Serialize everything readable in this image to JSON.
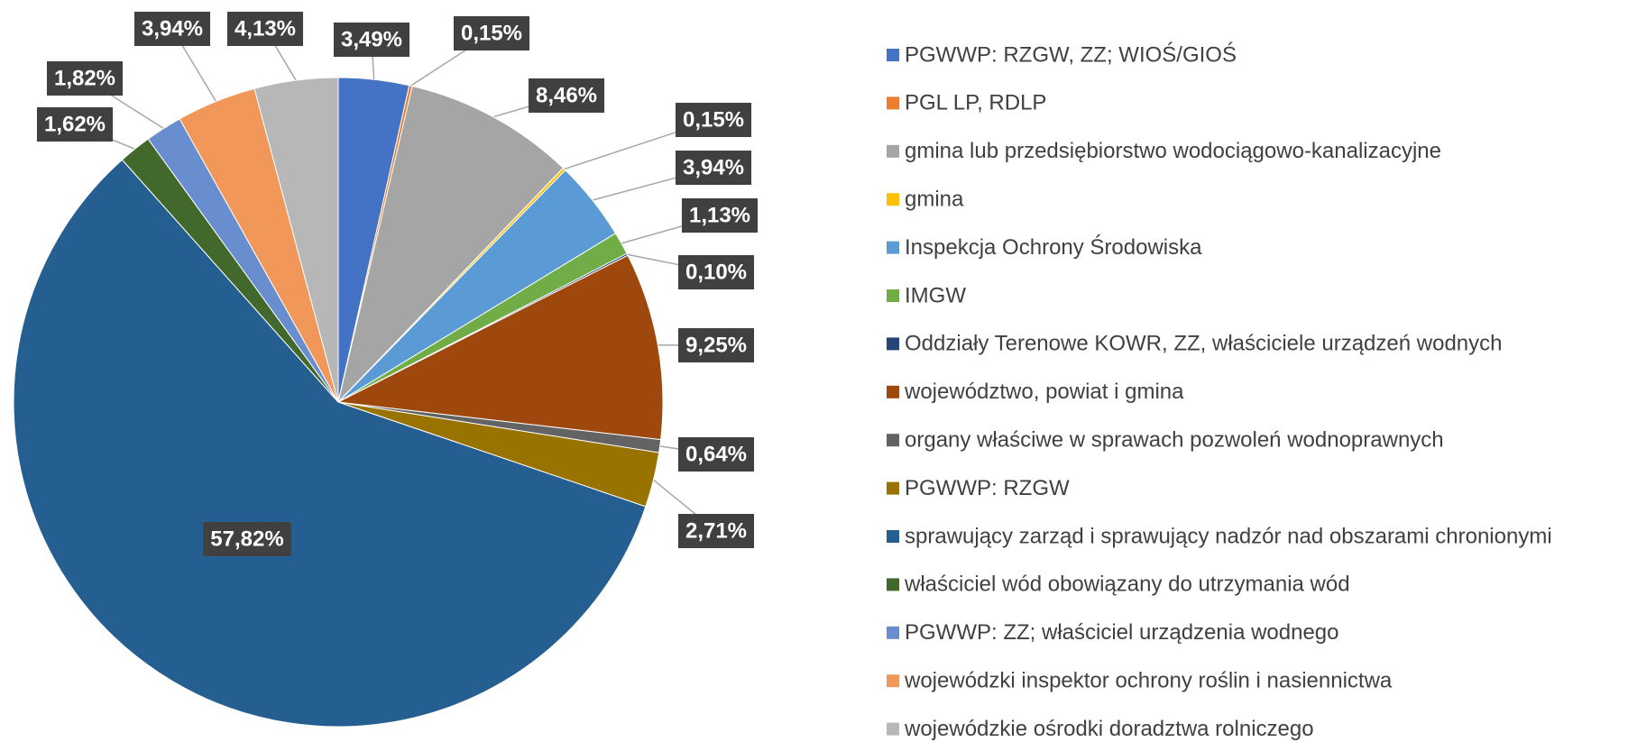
{
  "chart_data": {
    "type": "pie",
    "categories": [
      "PGWWP: RZGW, ZZ; WIOŚ/GIOŚ",
      "PGL LP, RDLP",
      "gmina lub przedsiębiorstwo wodociągowo-kanalizacyjne",
      "gmina",
      "Inspekcja Ochrony Środowiska",
      "IMGW",
      "Oddziały Terenowe KOWR, ZZ, właściciele urządzeń wodnych",
      "województwo, powiat i gmina",
      "organy właściwe w sprawach pozwoleń wodnoprawnych",
      "PGWWP: RZGW",
      "sprawujący zarząd i sprawujący nadzór nad obszarami chronionymi",
      "właściciel wód obowiązany do utrzymania wód",
      "PGWWP: ZZ; właściciel urządzenia wodnego",
      "wojewódzki inspektor ochrony roślin i nasiennictwa",
      "wojewódzkie ośrodki doradztwa rolniczego"
    ],
    "values": [
      3.49,
      0.15,
      8.46,
      0.15,
      3.94,
      1.13,
      0.1,
      9.25,
      0.64,
      2.71,
      57.82,
      1.62,
      1.82,
      3.94,
      4.13
    ],
    "value_labels": [
      "3,49%",
      "0,15%",
      "8,46%",
      "0,15%",
      "3,94%",
      "1,13%",
      "0,10%",
      "9,25%",
      "0,64%",
      "2,71%",
      "57,82%",
      "1,62%",
      "1,82%",
      "3,94%",
      "4,13%"
    ],
    "colors": [
      "#4472c4",
      "#ed7d31",
      "#a5a5a5",
      "#ffc000",
      "#5b9bd5",
      "#70ad47",
      "#264478",
      "#9e480e",
      "#636363",
      "#997300",
      "#255e91",
      "#43682b",
      "#698ed0",
      "#f1975a",
      "#b7b7b7"
    ],
    "legend": "right"
  }
}
